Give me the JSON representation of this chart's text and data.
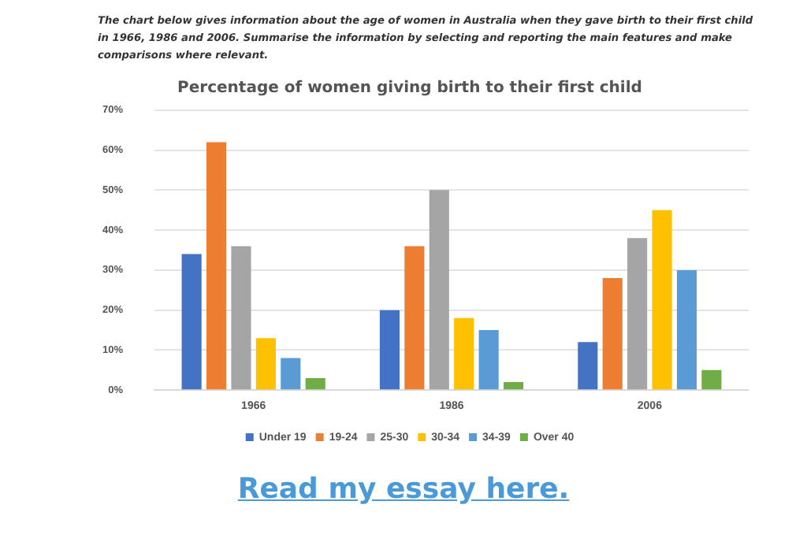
{
  "chart_data": {
    "type": "bar",
    "title": "Percentage of women giving birth to their first child",
    "annotations": [
      "The chart below gives information about the age of women in Australia when they gave birth to their first child in 1966, 1986 and 2006. Summarise the information by selecting and reporting the main features and make comparisons where relevant.",
      "Read my essay here."
    ],
    "categories": [
      "1966",
      "1986",
      "2006"
    ],
    "series": [
      {
        "name": "Under 19",
        "color": "#4472c4",
        "values": [
          34,
          20,
          12
        ]
      },
      {
        "name": "19-24",
        "color": "#ed7d31",
        "values": [
          62,
          36,
          28
        ]
      },
      {
        "name": "25-30",
        "color": "#a5a5a5",
        "values": [
          36,
          50,
          38
        ]
      },
      {
        "name": "30-34",
        "color": "#ffc000",
        "values": [
          13,
          18,
          45
        ]
      },
      {
        "name": "34-39",
        "color": "#5b9bd5",
        "values": [
          8,
          15,
          30
        ]
      },
      {
        "name": "Over 40",
        "color": "#70ad47",
        "values": [
          3,
          2,
          5
        ]
      }
    ],
    "ylim": [
      0,
      70
    ],
    "yticks": [
      {
        "value": 0,
        "label": "0%"
      },
      {
        "value": 10,
        "label": "10%"
      },
      {
        "value": 20,
        "label": "20%"
      },
      {
        "value": 30,
        "label": "30%"
      },
      {
        "value": 40,
        "label": "40%"
      },
      {
        "value": 50,
        "label": "50%"
      },
      {
        "value": 60,
        "label": "60%"
      },
      {
        "value": 70,
        "label": "70%"
      }
    ],
    "grid": "y",
    "legend": "bottom"
  }
}
